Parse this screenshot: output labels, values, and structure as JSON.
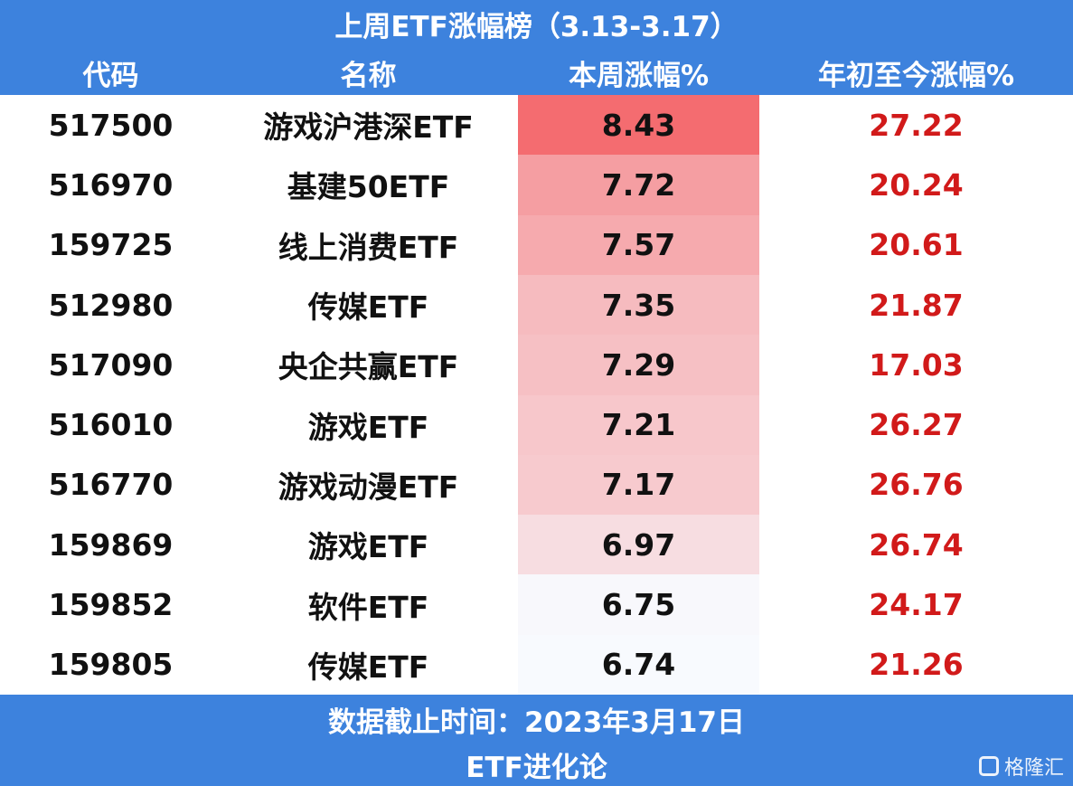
{
  "header": {
    "title": "上周ETF涨幅榜（3.13-3.17）",
    "columns": [
      "代码",
      "名称",
      "本周涨幅%",
      "年初至今涨幅%"
    ]
  },
  "table": {
    "rows": [
      [
        "517500",
        "游戏沪港深ETF",
        "8.43",
        "27.22"
      ],
      [
        "516970",
        "基建50ETF",
        "7.72",
        "20.24"
      ],
      [
        "159725",
        "线上消费ETF",
        "7.57",
        "20.61"
      ],
      [
        "512980",
        "传媒ETF",
        "7.35",
        "21.87"
      ],
      [
        "517090",
        "央企共赢ETF",
        "7.29",
        "17.03"
      ],
      [
        "516010",
        "游戏ETF",
        "7.21",
        "26.27"
      ],
      [
        "516770",
        "游戏动漫ETF",
        "7.17",
        "26.76"
      ],
      [
        "159869",
        "游戏ETF",
        "6.97",
        "26.74"
      ],
      [
        "159852",
        "软件ETF",
        "6.75",
        "24.17"
      ],
      [
        "159805",
        "传媒ETF",
        "6.74",
        "21.26"
      ]
    ]
  },
  "footer": {
    "lines": [
      "数据截止时间：2023年3月17日",
      "ETF进化论"
    ]
  },
  "watermark": "格隆汇"
}
